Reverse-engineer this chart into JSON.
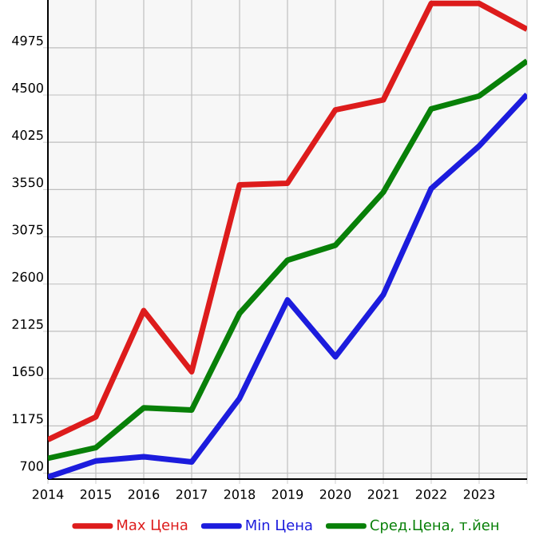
{
  "chart_data": {
    "type": "line",
    "x": [
      2014,
      2015,
      2016,
      2017,
      2018,
      2019,
      2020,
      2021,
      2022,
      2023,
      2024
    ],
    "series": [
      {
        "name": "Max Цена",
        "color": "#dd1c1c",
        "values": [
          1036,
          1265,
          2333,
          1720,
          3598,
          3614,
          4350,
          4451,
          5420,
          5420,
          5160
        ]
      },
      {
        "name": "Min Цена",
        "color": "#1c1cdd",
        "values": [
          660,
          823,
          865,
          812,
          1452,
          2440,
          1869,
          2493,
          3561,
          3987,
          4505
        ]
      },
      {
        "name": "Сред.Цена, т.йен",
        "color": "#088008",
        "values": [
          849,
          956,
          1356,
          1335,
          2306,
          2840,
          2990,
          3523,
          4361,
          4490,
          4842
        ]
      }
    ],
    "xlim": [
      2014,
      2024
    ],
    "xticks": [
      2014,
      2015,
      2016,
      2017,
      2018,
      2019,
      2020,
      2021,
      2022,
      2023,
      {
        "value": 2024,
        "label": null
      }
    ],
    "ylim": [
      640,
      5455
    ],
    "yticks": [
      700,
      1175,
      1650,
      2125,
      2600,
      3075,
      3550,
      4025,
      4500,
      4975
    ],
    "grid": true,
    "legend": "bottom",
    "marker": "none",
    "line_style": "solid"
  }
}
